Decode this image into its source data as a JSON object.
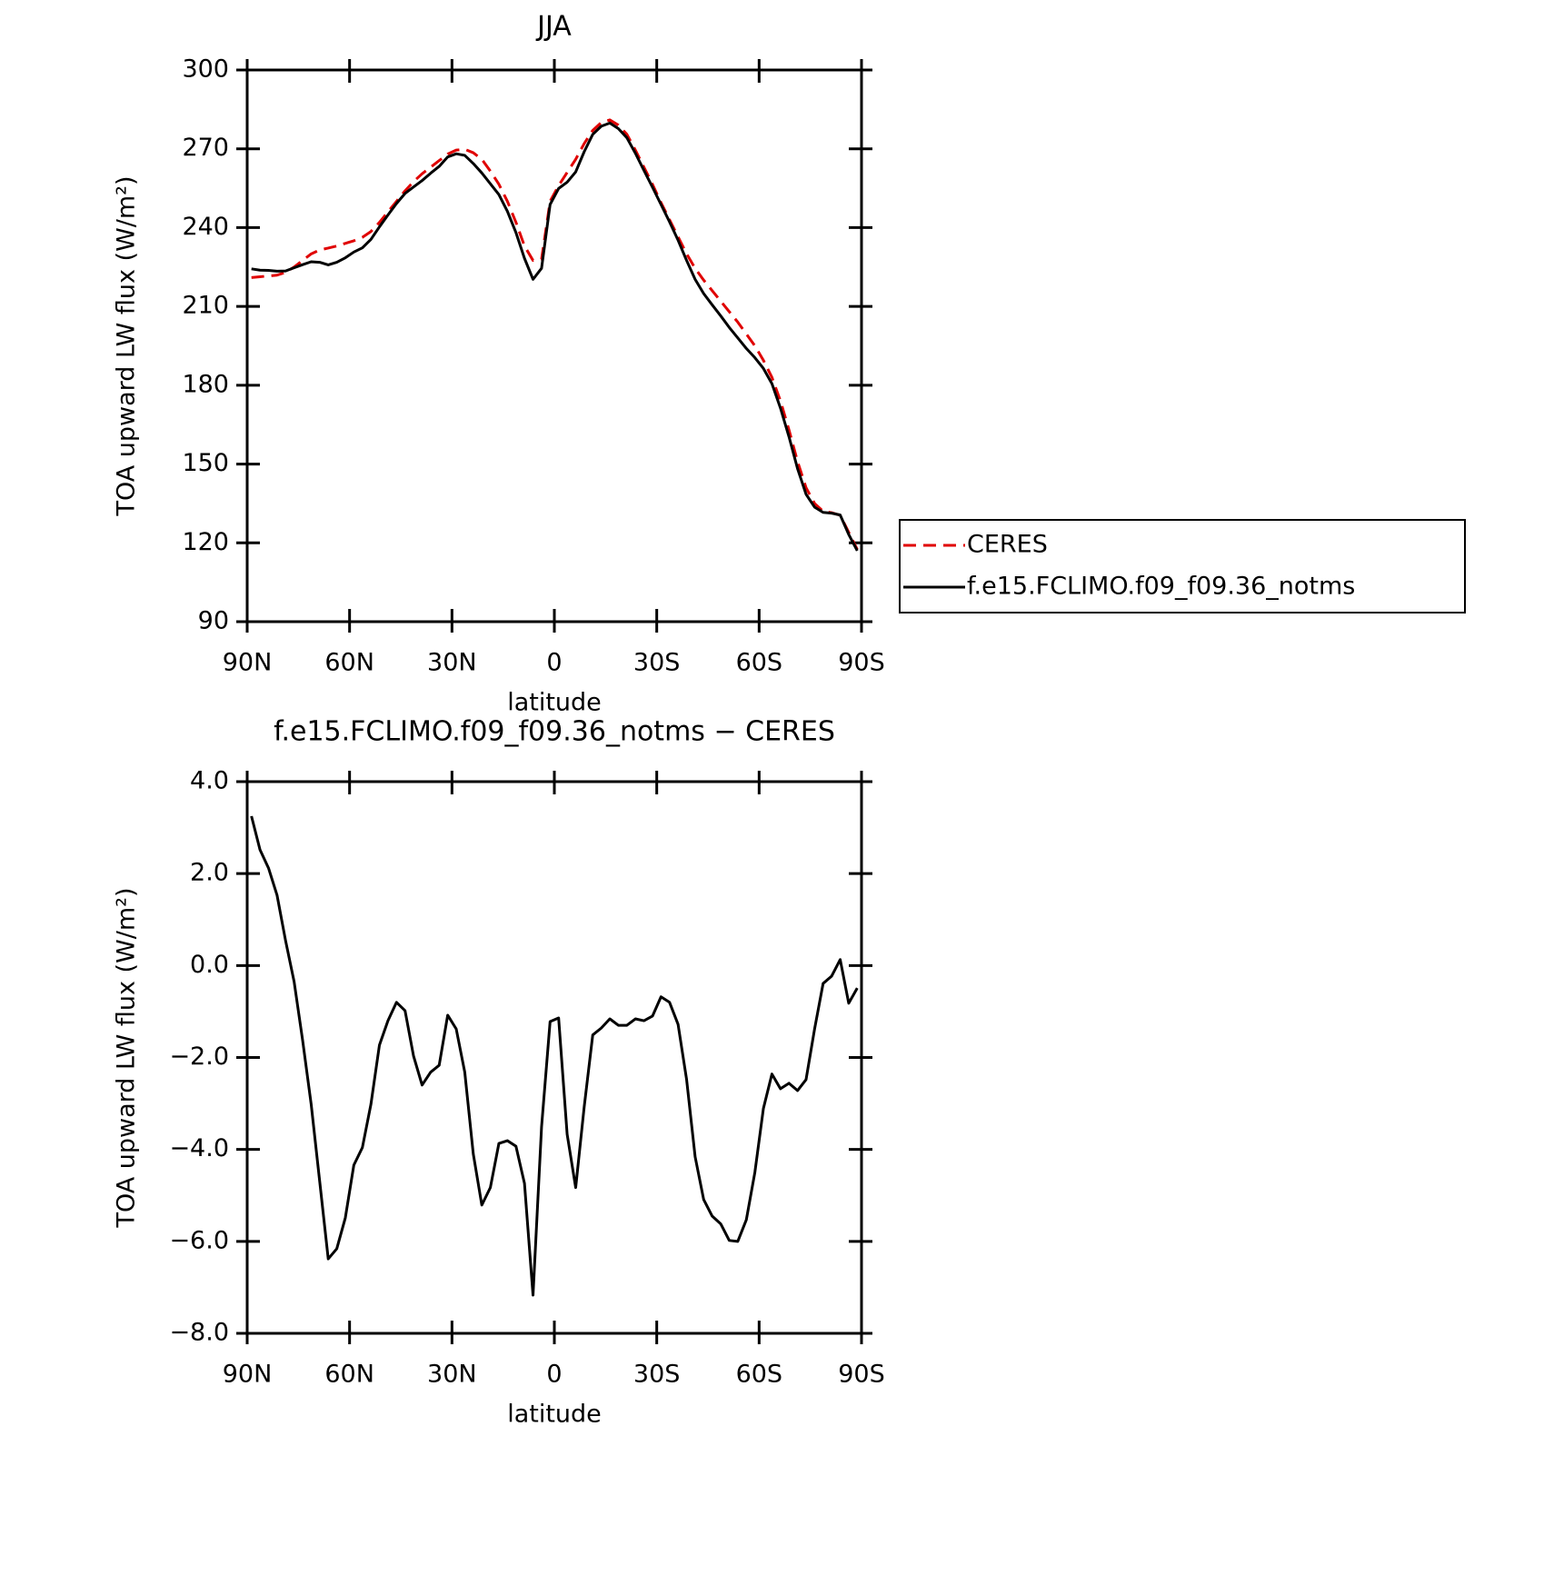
{
  "chart_data": [
    {
      "type": "line",
      "title": "JJA",
      "xlabel": "latitude",
      "ylabel": "TOA upward LW flux (W/m²)",
      "x": [
        88.75,
        86.25,
        83.75,
        81.25,
        78.75,
        76.25,
        73.75,
        71.25,
        68.75,
        66.25,
        63.75,
        61.25,
        58.75,
        56.25,
        53.75,
        51.25,
        48.75,
        46.25,
        43.75,
        41.25,
        38.75,
        36.25,
        33.75,
        31.25,
        28.75,
        26.25,
        23.75,
        21.25,
        18.75,
        16.25,
        13.75,
        11.25,
        8.75,
        6.25,
        3.75,
        1.25,
        -1.25,
        -3.75,
        -6.25,
        -8.75,
        -11.25,
        -13.75,
        -16.25,
        -18.75,
        -21.25,
        -23.75,
        -26.25,
        -28.75,
        -31.25,
        -33.75,
        -36.25,
        -38.75,
        -41.25,
        -43.75,
        -46.25,
        -48.75,
        -51.25,
        -53.75,
        -56.25,
        -58.75,
        -61.25,
        -63.75,
        -66.25,
        -68.75,
        -71.25,
        -73.75,
        -76.25,
        -78.75,
        -81.25,
        -83.75,
        -86.25,
        -88.75
      ],
      "series": [
        {
          "name": "CERES",
          "color": "#e00000",
          "line_style": "dashed",
          "values": [
            221.0,
            221.3,
            221.6,
            221.9,
            223.0,
            225.0,
            227.5,
            230.0,
            231.5,
            232.2,
            233.0,
            234.0,
            235.0,
            236.3,
            238.5,
            242.0,
            246.0,
            250.0,
            254.0,
            257.5,
            260.5,
            263.0,
            265.5,
            268.0,
            269.5,
            269.8,
            268.5,
            266.0,
            261.5,
            256.5,
            250.0,
            242.0,
            233.0,
            227.5,
            228.0,
            250.0,
            256.0,
            261.0,
            266.0,
            272.0,
            277.0,
            280.0,
            281.0,
            279.0,
            275.5,
            269.5,
            263.0,
            256.5,
            249.5,
            243.0,
            236.5,
            230.0,
            224.5,
            220.0,
            216.0,
            212.0,
            208.0,
            204.0,
            199.5,
            195.0,
            189.5,
            183.0,
            174.0,
            163.0,
            151.0,
            141.0,
            135.0,
            132.0,
            131.5,
            130.5,
            124.0,
            117.5
          ]
        },
        {
          "name": "f.e15.FCLIMO.f09_f09.36_notms",
          "color": "#000000",
          "line_style": "solid",
          "values": [
            224.3,
            223.8,
            223.7,
            223.4,
            223.5,
            224.7,
            225.9,
            227.0,
            226.8,
            225.8,
            226.8,
            228.5,
            230.7,
            232.3,
            235.5,
            240.3,
            244.8,
            249.2,
            253.0,
            255.5,
            257.9,
            260.7,
            263.3,
            266.9,
            268.1,
            267.5,
            264.4,
            260.8,
            256.7,
            252.6,
            246.2,
            238.1,
            228.3,
            220.3,
            224.5,
            248.8,
            254.9,
            257.3,
            261.2,
            268.9,
            275.5,
            278.6,
            279.8,
            277.7,
            274.2,
            268.3,
            261.8,
            255.4,
            248.8,
            242.2,
            235.2,
            227.5,
            220.3,
            214.9,
            210.6,
            206.4,
            202.0,
            198.0,
            194.0,
            190.5,
            186.4,
            180.6,
            171.3,
            160.4,
            148.3,
            138.5,
            133.6,
            131.6,
            131.3,
            130.6,
            123.2,
            117.0
          ]
        }
      ],
      "xlim": [
        90,
        -90
      ],
      "xticks": [
        {
          "value": 90,
          "label": "90N"
        },
        {
          "value": 60,
          "label": "60N"
        },
        {
          "value": 30,
          "label": "30N"
        },
        0,
        {
          "value": -30,
          "label": "30S"
        },
        {
          "value": -60,
          "label": "60S"
        },
        {
          "value": -90,
          "label": "90S"
        }
      ],
      "ylim": [
        90,
        300
      ],
      "yticks": [
        90,
        120,
        150,
        180,
        210,
        240,
        270,
        300
      ],
      "legend": "right"
    },
    {
      "type": "line",
      "title": "f.e15.FCLIMO.f09_f09.36_notms − CERES",
      "xlabel": "latitude",
      "ylabel": "TOA upward LW flux (W/m²)",
      "x": [
        88.75,
        86.25,
        83.75,
        81.25,
        78.75,
        76.25,
        73.75,
        71.25,
        68.75,
        66.25,
        63.75,
        61.25,
        58.75,
        56.25,
        53.75,
        51.25,
        48.75,
        46.25,
        43.75,
        41.25,
        38.75,
        36.25,
        33.75,
        31.25,
        28.75,
        26.25,
        23.75,
        21.25,
        18.75,
        16.25,
        13.75,
        11.25,
        8.75,
        6.25,
        3.75,
        1.25,
        -1.25,
        -3.75,
        -6.25,
        -8.75,
        -11.25,
        -13.75,
        -16.25,
        -18.75,
        -21.25,
        -23.75,
        -26.25,
        -28.75,
        -31.25,
        -33.75,
        -36.25,
        -38.75,
        -41.25,
        -43.75,
        -46.25,
        -48.75,
        -51.25,
        -53.75,
        -56.25,
        -58.75,
        -61.25,
        -63.75,
        -66.25,
        -68.75,
        -71.25,
        -73.75,
        -76.25,
        -78.75,
        -81.25,
        -83.75,
        -86.25,
        -88.75
      ],
      "color": "#000000",
      "values": [
        3.25,
        2.52,
        2.12,
        1.53,
        0.54,
        -0.35,
        -1.63,
        -3.02,
        -4.7,
        -6.38,
        -6.16,
        -5.49,
        -4.34,
        -3.96,
        -3.02,
        -1.73,
        -1.2,
        -0.8,
        -0.98,
        -1.97,
        -2.6,
        -2.32,
        -2.17,
        -1.08,
        -1.38,
        -2.32,
        -4.1,
        -5.21,
        -4.83,
        -3.87,
        -3.81,
        -3.93,
        -4.74,
        -7.17,
        -3.51,
        -1.22,
        -1.14,
        -3.67,
        -4.83,
        -3.07,
        -1.51,
        -1.36,
        -1.16,
        -1.3,
        -1.3,
        -1.16,
        -1.2,
        -1.1,
        -0.68,
        -0.8,
        -1.28,
        -2.48,
        -4.16,
        -5.09,
        -5.45,
        -5.62,
        -5.98,
        -6.0,
        -5.53,
        -4.5,
        -3.11,
        -2.36,
        -2.68,
        -2.56,
        -2.72,
        -2.48,
        -1.38,
        -0.39,
        -0.23,
        0.13,
        -0.82,
        -0.49
      ],
      "xlim": [
        90,
        -90
      ],
      "xticks": [
        {
          "value": 90,
          "label": "90N"
        },
        {
          "value": 60,
          "label": "60N"
        },
        {
          "value": 30,
          "label": "30N"
        },
        0,
        {
          "value": -30,
          "label": "30S"
        },
        {
          "value": -60,
          "label": "60S"
        },
        {
          "value": -90,
          "label": "90S"
        }
      ],
      "ylim": [
        -8,
        4
      ],
      "yticks": [
        {
          "value": -8,
          "label": "−8.0"
        },
        {
          "value": -6,
          "label": "−6.0"
        },
        {
          "value": -4,
          "label": "−4.0"
        },
        {
          "value": -2,
          "label": "−2.0"
        },
        {
          "value": 0,
          "label": "0.0"
        },
        {
          "value": 2,
          "label": "2.0"
        },
        {
          "value": 4,
          "label": "4.0"
        }
      ]
    }
  ]
}
